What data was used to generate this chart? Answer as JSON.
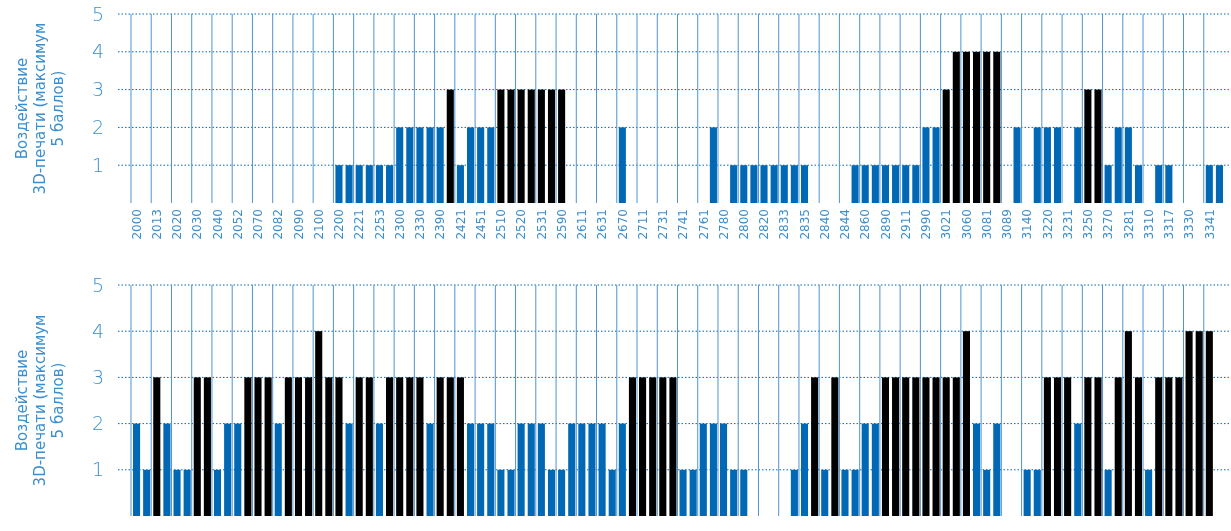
{
  "chart_data": [
    {
      "type": "bar",
      "ylabel": "Воздействие 3D-печати (максимум 5 баллов)",
      "ylim": [
        0,
        5
      ],
      "yticks": [
        1,
        2,
        3,
        4,
        5
      ],
      "grid": true,
      "categories": [
        "2000",
        null,
        "2013",
        null,
        "2020",
        null,
        "2030",
        null,
        "2040",
        null,
        "2052",
        null,
        "2070",
        null,
        "2082",
        null,
        "2090",
        null,
        "2100",
        null,
        "2200",
        null,
        "2221",
        null,
        "2253",
        null,
        "2300",
        null,
        "2330",
        null,
        "2390",
        null,
        "2421",
        null,
        "2451",
        null,
        "2510",
        null,
        "2520",
        null,
        "2531",
        null,
        "2590",
        null,
        "2611",
        null,
        "2631",
        null,
        "2670",
        null,
        "2711",
        null,
        "2731",
        null,
        "2741",
        null,
        "2761",
        null,
        "2780",
        null,
        "2800",
        null,
        "2820",
        null,
        "2833",
        null,
        "2835",
        null,
        "2840",
        null,
        "2844",
        null,
        "2860",
        null,
        "2890",
        null,
        "2911",
        null,
        "2990",
        null,
        "3021",
        null,
        "3060",
        null,
        "3081",
        null,
        "3089",
        null,
        "3140",
        null,
        "3220",
        null,
        "3231",
        null,
        "3250",
        null,
        "3270",
        null,
        "3281",
        null,
        "3310",
        null,
        "3317",
        null,
        "3330",
        null,
        "3341",
        null
      ],
      "values": [
        null,
        null,
        null,
        null,
        null,
        null,
        null,
        null,
        null,
        null,
        null,
        null,
        null,
        null,
        null,
        null,
        null,
        null,
        null,
        null,
        1,
        1,
        1,
        1,
        1,
        1,
        2,
        2,
        2,
        2,
        2,
        3,
        1,
        2,
        2,
        2,
        3,
        3,
        3,
        3,
        3,
        3,
        3,
        null,
        null,
        null,
        null,
        null,
        2,
        null,
        null,
        null,
        null,
        null,
        null,
        null,
        null,
        2,
        null,
        1,
        1,
        1,
        1,
        1,
        1,
        1,
        1,
        null,
        null,
        null,
        null,
        1,
        1,
        1,
        1,
        1,
        1,
        1,
        2,
        2,
        3,
        4,
        4,
        4,
        4,
        4,
        null,
        2,
        null,
        2,
        2,
        2,
        null,
        2,
        3,
        3,
        1,
        2,
        2,
        1,
        null,
        1,
        1,
        null,
        null,
        null,
        1,
        1
      ],
      "colors": [
        null,
        null,
        null,
        null,
        null,
        null,
        null,
        null,
        null,
        null,
        null,
        null,
        null,
        null,
        null,
        null,
        null,
        null,
        null,
        null,
        "#0068b4",
        "#0068b4",
        "#0068b4",
        "#0068b4",
        "#0068b4",
        "#0068b4",
        "#0068b4",
        "#0068b4",
        "#0068b4",
        "#0068b4",
        "#0068b4",
        "#000000",
        "#0068b4",
        "#0068b4",
        "#0068b4",
        "#0068b4",
        "#000000",
        "#000000",
        "#000000",
        "#000000",
        "#000000",
        "#000000",
        "#000000",
        null,
        null,
        null,
        null,
        null,
        "#0068b4",
        null,
        null,
        null,
        null,
        null,
        null,
        null,
        null,
        "#0068b4",
        null,
        "#0068b4",
        "#0068b4",
        "#0068b4",
        "#0068b4",
        "#0068b4",
        "#0068b4",
        "#0068b4",
        "#0068b4",
        null,
        null,
        null,
        null,
        "#0068b4",
        "#0068b4",
        "#0068b4",
        "#0068b4",
        "#0068b4",
        "#0068b4",
        "#0068b4",
        "#0068b4",
        "#0068b4",
        "#000000",
        "#000000",
        "#000000",
        "#000000",
        "#000000",
        "#000000",
        null,
        "#0068b4",
        null,
        "#0068b4",
        "#0068b4",
        "#0068b4",
        null,
        "#0068b4",
        "#000000",
        "#000000",
        "#0068b4",
        "#0068b4",
        "#0068b4",
        "#0068b4",
        null,
        "#0068b4",
        "#0068b4",
        null,
        null,
        null,
        "#0068b4",
        "#0068b4"
      ]
    },
    {
      "type": "bar",
      "ylabel": "Воздействие 3D-печати (максимум 5 баллов)",
      "ylim": [
        0,
        5
      ],
      "yticks": [
        1,
        2,
        3,
        4,
        5
      ],
      "grid": true,
      "categories": [
        null,
        null,
        null,
        null,
        null,
        null,
        null,
        null,
        null,
        null,
        null,
        null,
        null,
        null,
        null,
        null,
        null,
        null,
        null,
        null,
        null,
        null,
        null,
        null,
        null,
        null,
        null,
        null,
        null,
        null,
        null,
        null,
        null,
        null,
        null,
        null,
        null,
        null,
        null,
        null,
        null,
        null,
        null,
        null,
        null,
        null,
        null,
        null,
        null,
        null,
        null,
        null,
        null,
        null,
        null,
        null,
        null,
        null,
        null,
        null,
        null,
        null,
        null,
        null,
        null,
        null,
        null,
        null,
        null,
        null,
        null,
        null,
        null,
        null,
        null,
        null,
        null,
        null,
        null,
        null,
        null,
        null,
        null,
        null,
        null,
        null,
        null,
        null,
        null,
        null,
        null,
        null,
        null,
        null,
        null,
        null,
        null,
        null,
        null,
        null,
        null,
        null,
        null,
        null,
        null,
        null,
        null,
        null
      ],
      "values": [
        2,
        1,
        3,
        2,
        1,
        1,
        3,
        3,
        1,
        2,
        2,
        3,
        3,
        3,
        2,
        3,
        3,
        3,
        4,
        3,
        3,
        2,
        3,
        3,
        2,
        3,
        3,
        3,
        3,
        2,
        3,
        3,
        3,
        2,
        2,
        2,
        1,
        1,
        2,
        2,
        2,
        1,
        1,
        2,
        2,
        2,
        2,
        1,
        2,
        3,
        3,
        3,
        3,
        3,
        1,
        1,
        2,
        2,
        2,
        1,
        1,
        null,
        null,
        null,
        null,
        1,
        2,
        3,
        1,
        3,
        1,
        1,
        2,
        2,
        3,
        3,
        3,
        3,
        3,
        3,
        3,
        3,
        4,
        2,
        1,
        2,
        null,
        null,
        1,
        1,
        3,
        3,
        3,
        2,
        3,
        3,
        1,
        3,
        4,
        3,
        1,
        3,
        3,
        3,
        4,
        4,
        4,
        null
      ],
      "colors": [
        "#0068b4",
        "#0068b4",
        "#000000",
        "#0068b4",
        "#0068b4",
        "#0068b4",
        "#000000",
        "#000000",
        "#0068b4",
        "#0068b4",
        "#0068b4",
        "#000000",
        "#000000",
        "#000000",
        "#0068b4",
        "#000000",
        "#000000",
        "#000000",
        "#000000",
        "#000000",
        "#000000",
        "#0068b4",
        "#000000",
        "#000000",
        "#0068b4",
        "#000000",
        "#000000",
        "#000000",
        "#000000",
        "#0068b4",
        "#000000",
        "#000000",
        "#000000",
        "#0068b4",
        "#0068b4",
        "#0068b4",
        "#0068b4",
        "#0068b4",
        "#0068b4",
        "#0068b4",
        "#0068b4",
        "#0068b4",
        "#0068b4",
        "#0068b4",
        "#0068b4",
        "#0068b4",
        "#0068b4",
        "#0068b4",
        "#0068b4",
        "#000000",
        "#000000",
        "#000000",
        "#000000",
        "#000000",
        "#0068b4",
        "#0068b4",
        "#0068b4",
        "#0068b4",
        "#0068b4",
        "#0068b4",
        "#0068b4",
        null,
        null,
        null,
        null,
        "#0068b4",
        "#0068b4",
        "#000000",
        "#0068b4",
        "#000000",
        "#0068b4",
        "#0068b4",
        "#0068b4",
        "#0068b4",
        "#000000",
        "#000000",
        "#000000",
        "#000000",
        "#000000",
        "#000000",
        "#000000",
        "#000000",
        "#000000",
        "#0068b4",
        "#0068b4",
        "#0068b4",
        null,
        null,
        "#0068b4",
        "#0068b4",
        "#000000",
        "#000000",
        "#000000",
        "#0068b4",
        "#000000",
        "#000000",
        "#0068b4",
        "#000000",
        "#000000",
        "#000000",
        "#0068b4",
        "#000000",
        "#000000",
        "#000000",
        "#000000",
        "#000000",
        "#000000",
        null
      ]
    }
  ]
}
